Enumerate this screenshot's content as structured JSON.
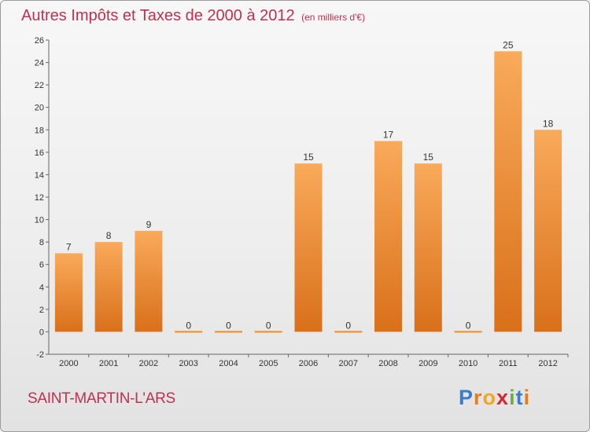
{
  "title": "Autres Impôts et Taxes de 2000 à 2012",
  "subtitle": "(en milliers d'€)",
  "location": "SAINT-MARTIN-L'ARS",
  "brand": {
    "letters": [
      "P",
      "r",
      "o",
      "x",
      "i",
      "t",
      "i"
    ],
    "colors": [
      "#3a7dc9",
      "#e57c22",
      "#f0a623",
      "#d7272f",
      "#6fae3d",
      "#3a7dc9",
      "#e57c22"
    ]
  },
  "colors": {
    "bar": "#f08a24",
    "bar_light": "#f9aa5a",
    "bar_dark": "#d9701a",
    "title": "#c0304f"
  },
  "chart_data": {
    "type": "bar",
    "categories": [
      "2000",
      "2001",
      "2002",
      "2003",
      "2004",
      "2005",
      "2006",
      "2007",
      "2008",
      "2009",
      "2010",
      "2011",
      "2012"
    ],
    "values": [
      7,
      8,
      9,
      0,
      0,
      0,
      15,
      0,
      17,
      15,
      0,
      25,
      18
    ],
    "data_labels": [
      "7",
      "8",
      "9",
      "0",
      "0",
      "0",
      "15",
      "0",
      "17",
      "15",
      "0",
      "25",
      "18"
    ],
    "ylim": [
      -2,
      26
    ],
    "yticks": [
      -2,
      0,
      2,
      4,
      6,
      8,
      10,
      12,
      14,
      16,
      18,
      20,
      22,
      24,
      26
    ],
    "ytick_labels": [
      "-2",
      "0",
      "2",
      "4",
      "6",
      "8",
      "10",
      "12",
      "14",
      "16",
      "18",
      "20",
      "22",
      "24",
      "26"
    ],
    "xlabel": "",
    "ylabel": "",
    "grid": false,
    "legend": "none"
  }
}
